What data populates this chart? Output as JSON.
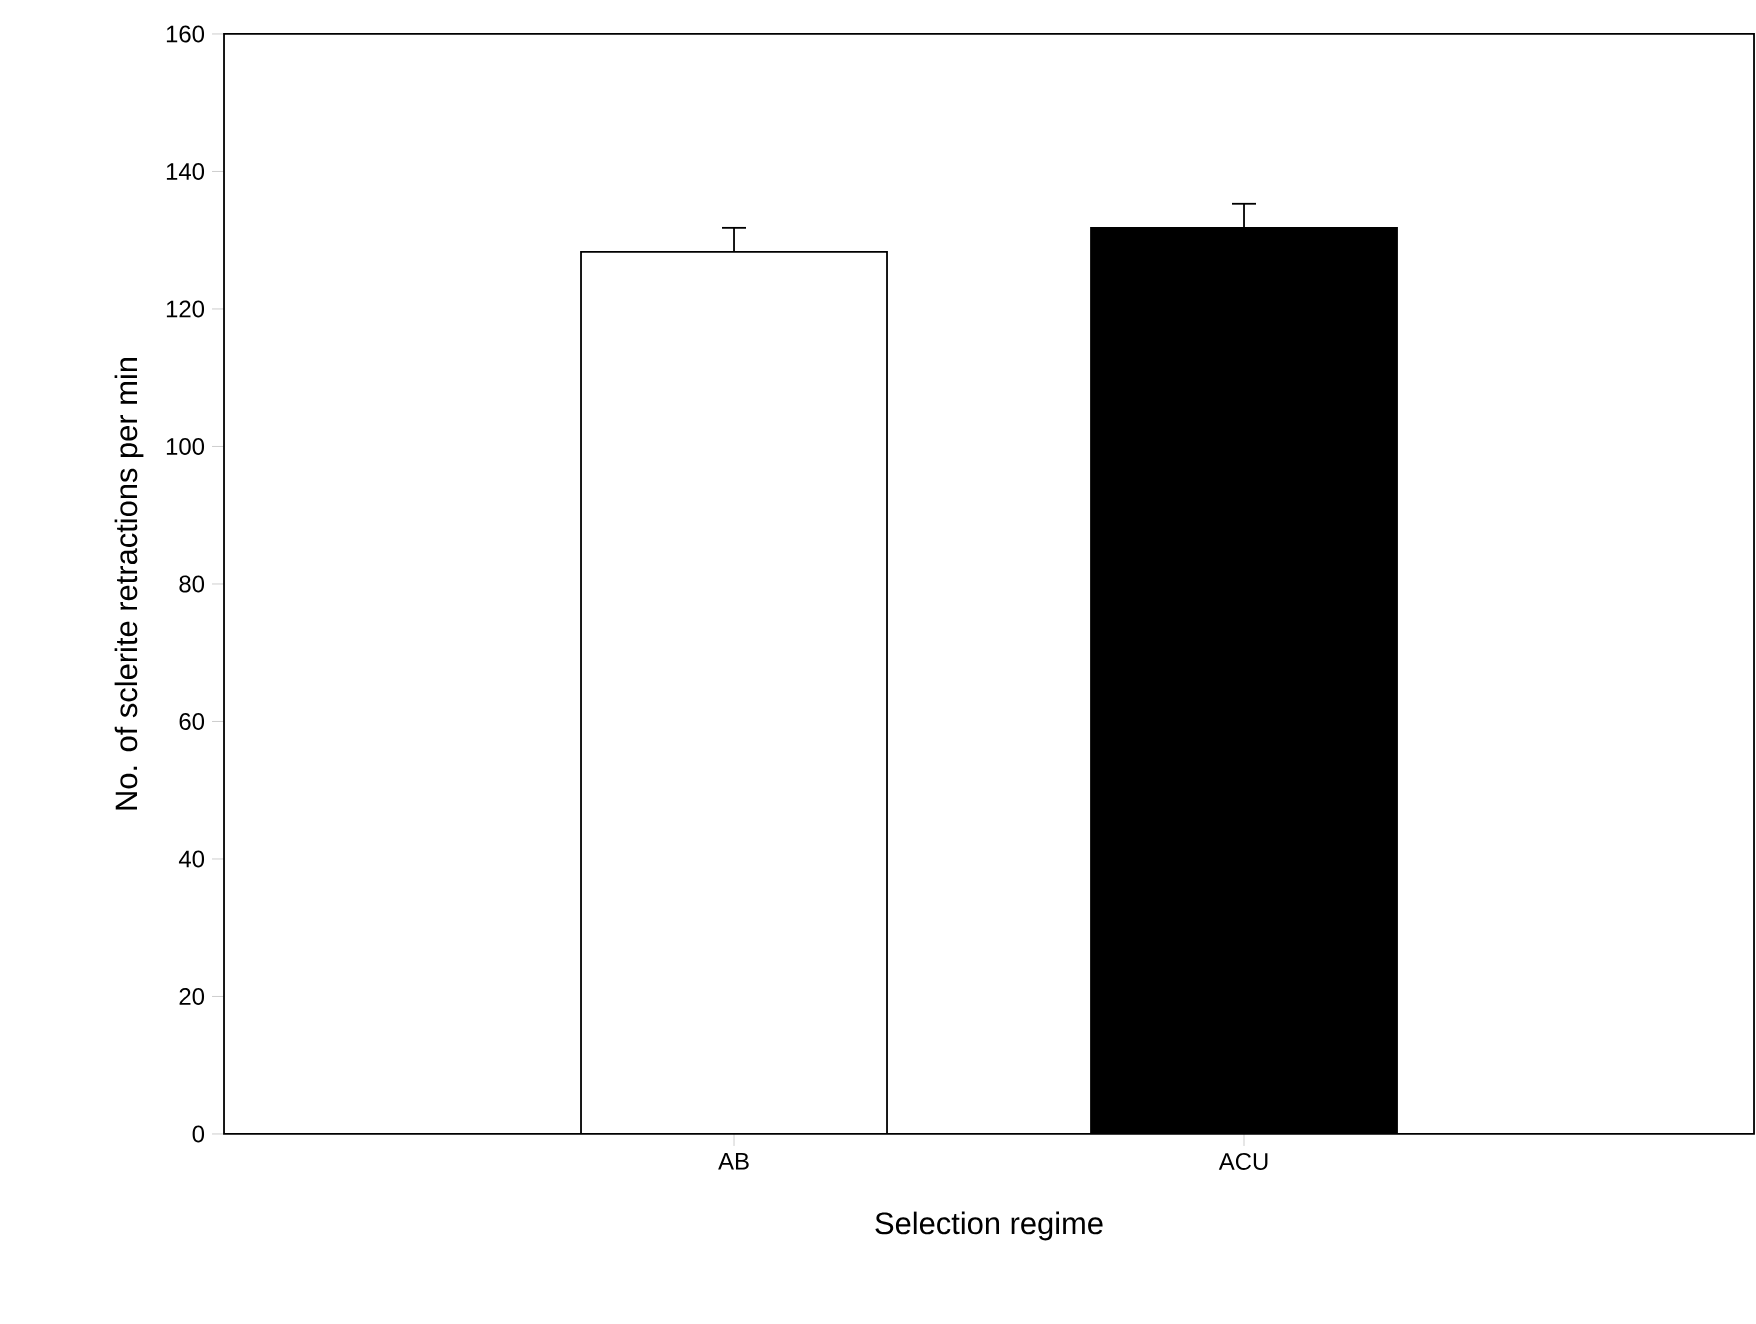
{
  "chart_data": {
    "type": "bar",
    "xlabel": "Selection regime",
    "ylabel": "No. of sclerite retractions per min",
    "categories": [
      "AB",
      "ACU"
    ],
    "values": [
      128.3,
      131.8
    ],
    "colors": [
      "#ffffff",
      "#000000"
    ],
    "errors": [
      3.5,
      3.5
    ],
    "ylim": [
      0,
      160
    ],
    "yticks": [
      0,
      20,
      40,
      60,
      80,
      100,
      120,
      140,
      160
    ]
  }
}
